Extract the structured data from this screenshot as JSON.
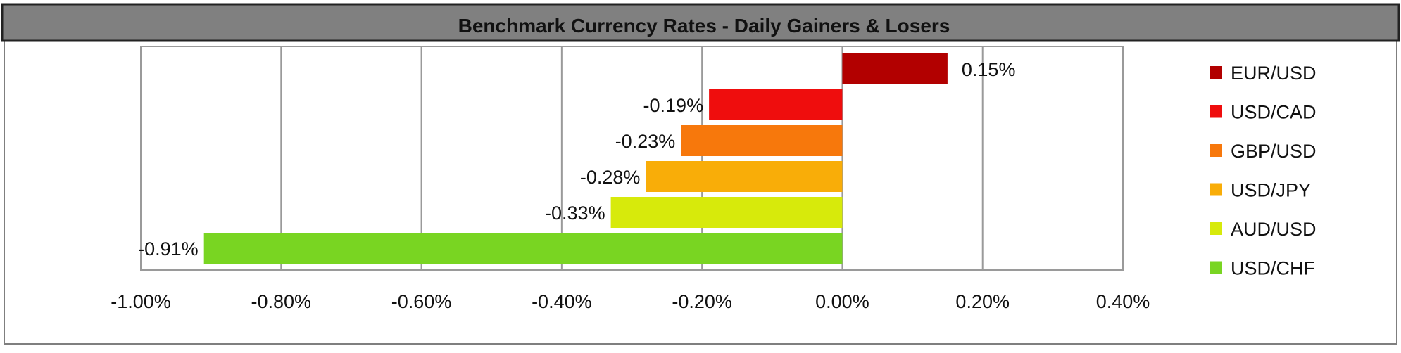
{
  "chart_data": {
    "type": "bar",
    "orientation": "horizontal",
    "title": "Benchmark Currency Rates - Daily Gainers & Losers",
    "xlabel": "",
    "ylabel": "",
    "xlim": [
      -1.0,
      0.4
    ],
    "x_ticks": [
      "-1.00%",
      "-0.80%",
      "-0.60%",
      "-0.40%",
      "-0.20%",
      "0.00%",
      "0.20%",
      "0.40%"
    ],
    "x_tick_values": [
      -1.0,
      -0.8,
      -0.6,
      -0.4,
      -0.2,
      0.0,
      0.2,
      0.4
    ],
    "grid": true,
    "legend_position": "right",
    "series": [
      {
        "name": "EUR/USD",
        "value": 0.15,
        "label": "0.15%",
        "color": "#b20000"
      },
      {
        "name": "USD/CAD",
        "value": -0.19,
        "label": "-0.19%",
        "color": "#ef0d0d"
      },
      {
        "name": "GBP/USD",
        "value": -0.23,
        "label": "-0.23%",
        "color": "#f7780c"
      },
      {
        "name": "USD/JPY",
        "value": -0.28,
        "label": "-0.28%",
        "color": "#f9ad08"
      },
      {
        "name": "AUD/USD",
        "value": -0.33,
        "label": "-0.33%",
        "color": "#d7ea0b"
      },
      {
        "name": "USD/CHF",
        "value": -0.91,
        "label": "-0.91%",
        "color": "#79d522"
      }
    ],
    "title_bar_color": "#808080"
  }
}
